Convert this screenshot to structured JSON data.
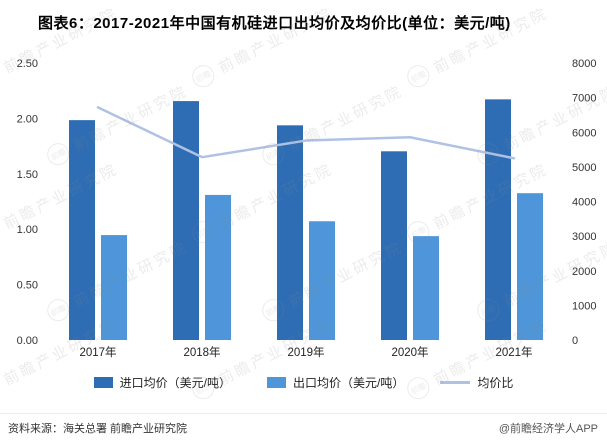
{
  "page": {
    "title": "图表6：2017-2021年中国有机硅进口出均价及均价比(单位：美元/吨)",
    "watermark": "前瞻产业研究院",
    "watermark_icon": "前瞻",
    "footer": {
      "source": "资料来源：海关总署 前瞻产业研究院",
      "credit": "@前瞻经济学人APP"
    }
  },
  "colors": {
    "import_bar": "#2e6db4",
    "export_bar": "#4e96d9",
    "ratio_line": "#b0c2e4"
  },
  "chart_data": {
    "type": "bar",
    "subtype": "grouped-bars-with-line",
    "title": "图表6：2017-2021年中国有机硅进口出均价及均价比(单位：美元/吨)",
    "categories": [
      "2017年",
      "2018年",
      "2019年",
      "2020年",
      "2021年"
    ],
    "series": [
      {
        "name": "进口均价（美元/吨）",
        "type": "bar",
        "axis": "right",
        "values": [
          6350,
          6900,
          6200,
          5450,
          6950
        ]
      },
      {
        "name": "出口均价（美元/吨）",
        "type": "bar",
        "axis": "right",
        "values": [
          3030,
          4190,
          3430,
          3000,
          4240
        ]
      },
      {
        "name": "均价比",
        "type": "line",
        "axis": "left",
        "values": [
          2.1,
          1.65,
          1.8,
          1.83,
          1.64
        ]
      }
    ],
    "left_axis": {
      "min": 0,
      "max": 2.5,
      "ticks": [
        "2.50",
        "2.00",
        "1.50",
        "1.00",
        "0.50",
        "0.00"
      ]
    },
    "right_axis": {
      "min": 0,
      "max": 8000,
      "ticks": [
        "8000",
        "7000",
        "6000",
        "5000",
        "4000",
        "3000",
        "2000",
        "1000",
        "0"
      ]
    },
    "grid": false,
    "legend_position": "bottom"
  },
  "legend": [
    {
      "label": "进口均价（美元/吨）",
      "type": "bar",
      "color": "#2e6db4"
    },
    {
      "label": "出口均价（美元/吨）",
      "type": "bar",
      "color": "#4e96d9"
    },
    {
      "label": "均价比",
      "type": "line",
      "color": "#b0c2e4"
    }
  ]
}
